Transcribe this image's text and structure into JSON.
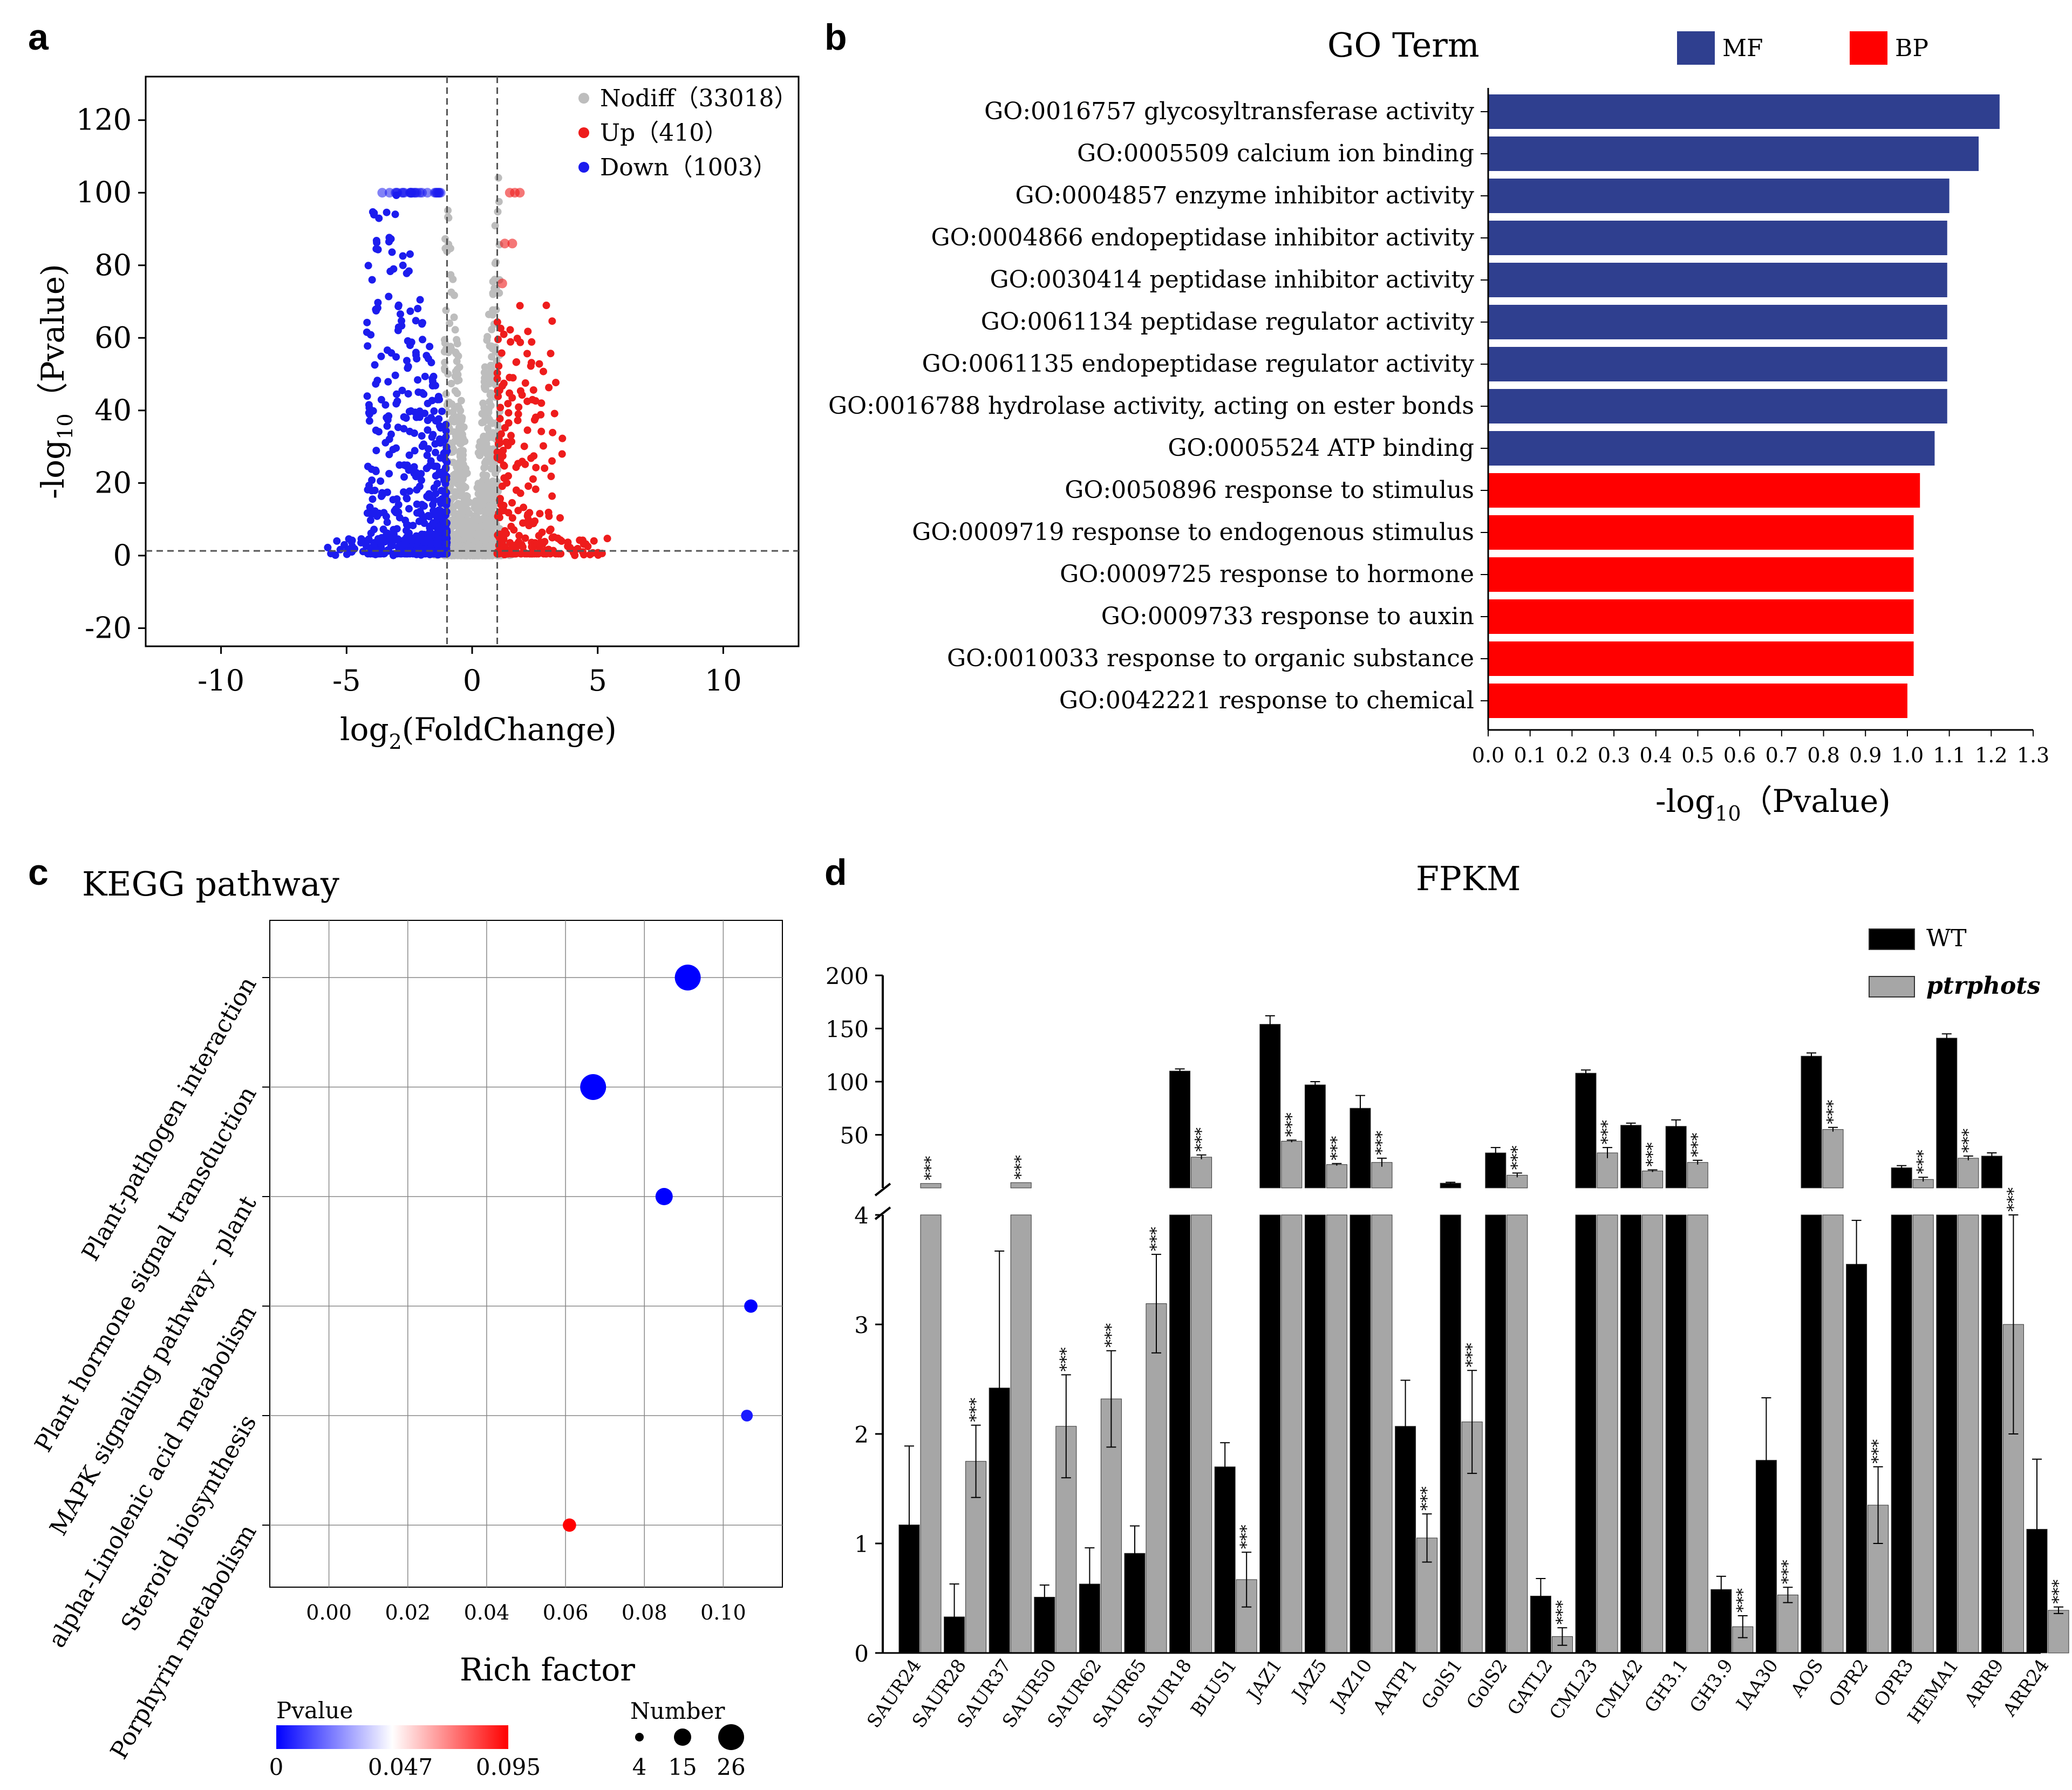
{
  "panel_labels": {
    "a": "a",
    "b": "b",
    "c": "c",
    "d": "d"
  },
  "colors": {
    "nodiff": "#bdbdbd",
    "up": "#ee1c1c",
    "down": "#1c1cee",
    "mf": "#2f3f8f",
    "bp": "#ff0000",
    "wt": "#000000",
    "mut": "#a6a6a6"
  },
  "chart_data": [
    {
      "id": "volcano",
      "type": "scatter",
      "title": "",
      "xlabel_main": "log",
      "xlabel_sub": "2",
      "xlabel_rest": "(FoldChange)",
      "ylabel_main": "-log",
      "ylabel_sub": "10",
      "ylabel_rest": "（Pvalue)",
      "xlim": [
        -13,
        13
      ],
      "ylim": [
        -25,
        132
      ],
      "xticks": [
        -10,
        -5,
        0,
        5,
        10
      ],
      "yticks": [
        -20,
        0,
        20,
        40,
        60,
        80,
        100,
        120
      ],
      "threshold_x": [
        -1,
        1
      ],
      "threshold_y": 1.3,
      "legend": [
        {
          "label": "Nodiff（33018）",
          "color": "#bdbdbd"
        },
        {
          "label": "Up（410）",
          "color": "#ee1c1c"
        },
        {
          "label": "Down（1003）",
          "color": "#1c1cee"
        }
      ],
      "series": [
        {
          "name": "Nodiff",
          "count": 33018
        },
        {
          "name": "Up",
          "count": 410
        },
        {
          "name": "Down",
          "count": 1003
        }
      ]
    },
    {
      "id": "go",
      "type": "bar",
      "orientation": "horizontal",
      "title": "GO Term",
      "xlabel_main": "-log",
      "xlabel_sub": "10",
      "xlabel_rest": "（Pvalue)",
      "xlim": [
        0,
        1.3
      ],
      "xticks": [
        "0.0",
        "0.1",
        "0.2",
        "0.3",
        "0.4",
        "0.5",
        "0.6",
        "0.7",
        "0.8",
        "0.9",
        "1.0",
        "1.1",
        "1.2",
        "1.3"
      ],
      "legend": [
        {
          "label": "MF",
          "color": "#2f3f8f"
        },
        {
          "label": "BP",
          "color": "#ff0000"
        }
      ],
      "categories": [
        "GO:0016757 glycosyltransferase activity",
        "GO:0005509 calcium ion binding",
        "GO:0004857 enzyme inhibitor activity",
        "GO:0004866 endopeptidase inhibitor activity",
        "GO:0030414 peptidase inhibitor activity",
        "GO:0061134 peptidase regulator activity",
        "GO:0061135 endopeptidase regulator activity",
        "GO:0016788 hydrolase activity, acting on ester bonds",
        "GO:0005524 ATP binding",
        "GO:0050896 response to stimulus",
        "GO:0009719 response to endogenous stimulus",
        "GO:0009725 response to hormone",
        "GO:0009733 response to auxin",
        "GO:0010033 response to organic substance",
        "GO:0042221 response to chemical"
      ],
      "values": [
        1.22,
        1.17,
        1.1,
        1.095,
        1.095,
        1.095,
        1.095,
        1.095,
        1.065,
        1.03,
        1.015,
        1.015,
        1.015,
        1.015,
        1.0
      ],
      "groups": [
        "MF",
        "MF",
        "MF",
        "MF",
        "MF",
        "MF",
        "MF",
        "MF",
        "MF",
        "BP",
        "BP",
        "BP",
        "BP",
        "BP",
        "BP"
      ]
    },
    {
      "id": "kegg",
      "type": "scatter",
      "title": "KEGG pathway",
      "xlabel": "Rich factor",
      "xlim": [
        -0.015,
        0.115
      ],
      "xticks": [
        "0.00",
        "0.02",
        "0.04",
        "0.06",
        "0.08",
        "0.10"
      ],
      "categories": [
        "Plant-pathogen interaction",
        "Plant hormone signal transduction",
        "MAPK signaling pathway - plant",
        "alpha-Linolenic acid metabolism",
        "Steroid biosynthesis",
        "Porphyrin metabolism"
      ],
      "rich_factor": [
        0.091,
        0.067,
        0.085,
        0.107,
        0.106,
        0.061
      ],
      "number": [
        26,
        26,
        15,
        10,
        8,
        10
      ],
      "pvalue": [
        0.0,
        0.0,
        0.0,
        0.0,
        0.005,
        0.095
      ],
      "legend_pvalue": {
        "title": "Pvalue",
        "ticks": [
          "0",
          "0.047",
          "0.095"
        ]
      },
      "legend_number": {
        "title": "Number",
        "values": [
          4,
          15,
          26
        ],
        "labels": [
          "4",
          "15",
          "26"
        ]
      }
    },
    {
      "id": "fpkm",
      "type": "bar",
      "title": "FPKM",
      "legend": [
        {
          "label": "WT",
          "color": "#000000"
        },
        {
          "label": "ptrphots",
          "color": "#a6a6a6"
        }
      ],
      "upper_ylim": [
        0,
        200
      ],
      "upper_yticks": [
        "50",
        "100",
        "150",
        "200"
      ],
      "lower_ylim": [
        0,
        4
      ],
      "lower_yticks": [
        "0",
        "1",
        "2",
        "3",
        "4"
      ],
      "categories": [
        "SAUR24",
        "SAUR28",
        "SAUR37",
        "SAUR50",
        "SAUR62",
        "SAUR65",
        "SAUR18",
        "BLUS1",
        "JAZ1",
        "JAZ5",
        "JAZ10",
        "AATP1",
        "GolS1",
        "GolS2",
        "GATL2",
        "CML23",
        "CML42",
        "GH3.1",
        "GH3.9",
        "IAA30",
        "AOS",
        "OPR2",
        "OPR3",
        "HEMA1",
        "ARR9",
        "ARR24"
      ],
      "series": [
        {
          "name": "WT",
          "values": [
            1.17,
            0.33,
            2.42,
            0.51,
            0.63,
            0.91,
            110,
            1.7,
            154,
            97,
            75,
            2.07,
            4.5,
            33,
            0.52,
            108,
            59,
            58,
            0.58,
            1.76,
            124,
            3.55,
            19,
            141,
            30,
            1.13
          ],
          "errors": [
            0.72,
            0.3,
            1.25,
            0.11,
            0.33,
            0.25,
            2,
            0.22,
            8,
            3,
            12,
            0.42,
            0.8,
            5,
            0.16,
            3,
            2,
            6,
            0.12,
            0.57,
            3,
            0.4,
            2,
            4,
            3,
            0.64
          ]
        },
        {
          "name": "ptrphots",
          "values": [
            4.2,
            1.75,
            5.0,
            2.07,
            2.32,
            3.19,
            29,
            0.67,
            44,
            22,
            24,
            1.05,
            2.11,
            12,
            0.15,
            33,
            16,
            24,
            0.24,
            0.53,
            55,
            1.35,
            8,
            28,
            3,
            0.39
          ],
          "errors": [
            0,
            0.33,
            0,
            0.47,
            0.44,
            0.45,
            2,
            0.25,
            1,
            1,
            4,
            0.22,
            0.47,
            2,
            0.08,
            5,
            1,
            2,
            0.1,
            0.07,
            2,
            0.35,
            2,
            2,
            1,
            0.03
          ],
          "significance": [
            "***",
            "***",
            "***",
            "***",
            "***",
            "***",
            "***",
            "***",
            "***",
            "***",
            "***",
            "***",
            "***",
            "***",
            "***",
            "***",
            "***",
            "***",
            "***",
            "***",
            "***",
            "***",
            "***",
            "***",
            "***",
            "***"
          ]
        }
      ]
    }
  ]
}
